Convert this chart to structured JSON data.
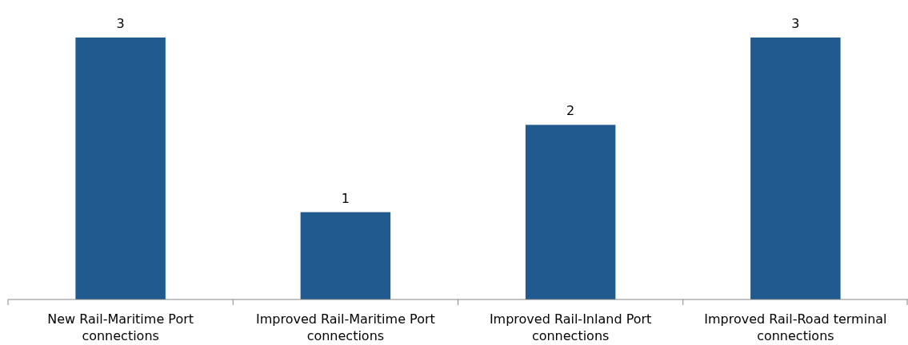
{
  "chart_data": {
    "type": "bar",
    "categories": [
      "New Rail-Maritime Port connections",
      "Improved Rail-Maritime Port connections",
      "Improved Rail-Inland Port connections",
      "Improved Rail-Road terminal connections"
    ],
    "values": [
      3,
      1,
      2,
      3
    ],
    "color": "#215a8f",
    "data_labels": true
  }
}
